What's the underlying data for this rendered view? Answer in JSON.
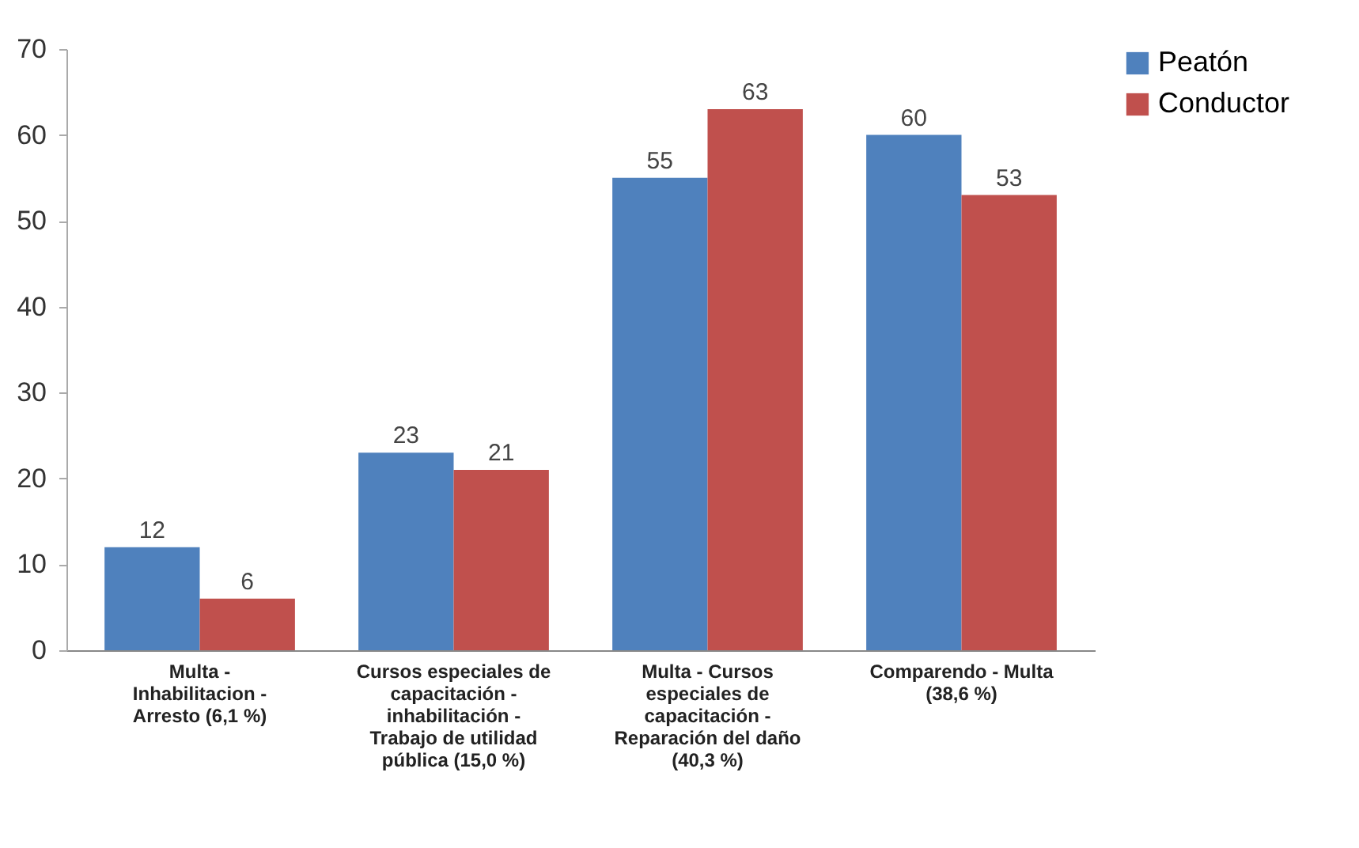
{
  "chart_data": {
    "type": "bar",
    "categories": [
      "Multa - Inhabilitacion - Arresto (6,1 %)",
      "Cursos especiales de capacitación - inhabilitación - Trabajo de utilidad pública (15,0 %)",
      "Multa - Cursos especiales de capacitación - Reparación del daño (40,3 %)",
      "Comparendo - Multa (38,6 %)"
    ],
    "series": [
      {
        "name": "Peatón",
        "color": "#4f81bd",
        "values": [
          12,
          23,
          55,
          60
        ]
      },
      {
        "name": "Conductor",
        "color": "#c0504d",
        "values": [
          6,
          21,
          63,
          53
        ]
      }
    ],
    "ylim": [
      0,
      70
    ],
    "yticks": [
      0,
      10,
      20,
      30,
      40,
      50,
      60,
      70
    ],
    "data_labels": true,
    "grid": false,
    "legend": "right"
  }
}
